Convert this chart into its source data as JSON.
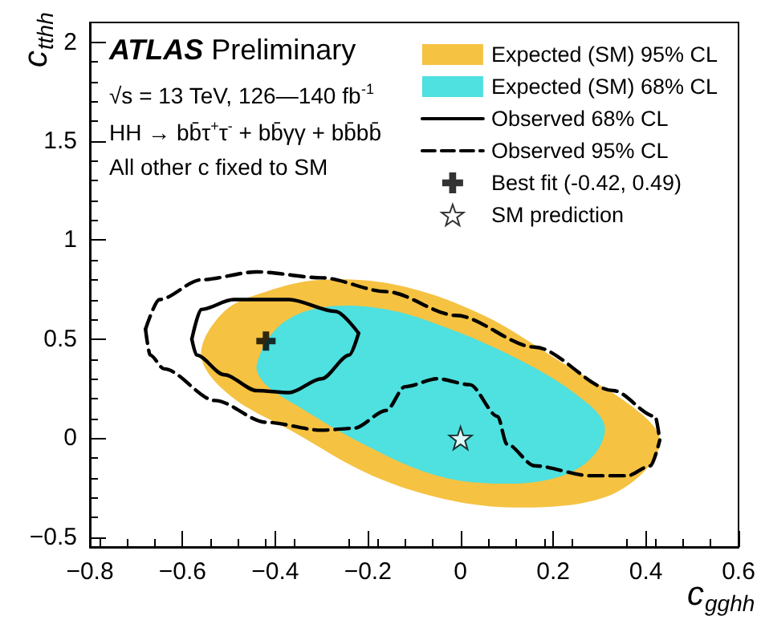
{
  "chart_data": {
    "type": "line",
    "xlabel": "c$_{gghh}$",
    "ylabel": "c$_{tthh}$",
    "xlim": [
      -0.8,
      0.6
    ],
    "xticks": [
      -0.8,
      -0.6,
      -0.4,
      -0.2,
      0,
      0.2,
      0.4,
      0.6
    ],
    "ylim": [
      -0.55,
      2.1
    ],
    "yticks": [
      -0.5,
      0,
      0.5,
      1,
      1.5,
      2
    ],
    "grid": false,
    "legend": "top right",
    "annotations": [
      "ATLAS Preliminary",
      "√s = 13 TeV, 126—140 fb$^{-1}$",
      "HH → bb̄τ$^{+}$τ$^{-}$ + bb̄γγ + bb̄bb̄",
      "All other c fixed to SM"
    ],
    "series": [
      {
        "name": "Expected (SM) 95% CL",
        "type": "area",
        "color": "#f5c242",
        "x": [
          -0.56,
          -0.51,
          -0.42,
          -0.3,
          -0.13,
          0.05,
          0.22,
          0.37,
          0.43,
          0.4,
          0.31,
          0.16,
          -0.01,
          -0.19,
          -0.36,
          -0.5
        ],
        "values": [
          0.42,
          0.64,
          0.74,
          0.8,
          0.77,
          0.62,
          0.38,
          0.16,
          0,
          -0.16,
          -0.3,
          -0.35,
          -0.32,
          -0.19,
          0.03,
          0.22
        ]
      },
      {
        "name": "Expected (SM) 68% CL",
        "type": "area",
        "color": "#4fe0e0",
        "x": [
          -0.44,
          -0.39,
          -0.3,
          -0.16,
          -0.01,
          0.14,
          0.25,
          0.31,
          0.29,
          0.22,
          0.1,
          -0.05,
          -0.21,
          -0.35,
          -0.42
        ],
        "values": [
          0.37,
          0.57,
          0.66,
          0.65,
          0.54,
          0.38,
          0.22,
          0.07,
          -0.08,
          -0.19,
          -0.23,
          -0.19,
          -0.03,
          0.16,
          0.27
        ]
      },
      {
        "name": "Observed 68% CL",
        "line_style": "solid",
        "color": "#000000",
        "x": [
          -0.58,
          -0.56,
          -0.49,
          -0.37,
          -0.27,
          -0.22
        ],
        "values": [
          0.5,
          0.65,
          0.7,
          0.7,
          0.64,
          0.53
        ]
      },
      {
        "line_style": "solid",
        "color": "#000000",
        "x": [
          -0.58,
          -0.57,
          -0.51,
          -0.44,
          -0.37,
          -0.3,
          -0.24,
          -0.22
        ],
        "values": [
          0.5,
          0.42,
          0.32,
          0.24,
          0.23,
          0.3,
          0.42,
          0.53
        ]
      },
      {
        "name": "Observed 95% CL",
        "line_style": "dashed",
        "color": "#000000",
        "x": [
          -0.68,
          -0.65,
          -0.56,
          -0.44,
          -0.3,
          -0.16,
          -0.01,
          0.16,
          0.33,
          0.42,
          0.43
        ],
        "values": [
          0.55,
          0.7,
          0.8,
          0.84,
          0.81,
          0.74,
          0.62,
          0.46,
          0.24,
          0.11,
          -0.01
        ]
      },
      {
        "line_style": "dashed",
        "color": "#000000",
        "x": [
          -0.68,
          -0.67,
          -0.64,
          -0.53,
          -0.42,
          -0.3,
          -0.23,
          -0.16,
          -0.12,
          -0.05,
          0.02,
          0.08,
          0.1,
          0.16,
          0.28,
          0.36,
          0.41,
          0.43
        ],
        "values": [
          0.55,
          0.42,
          0.35,
          0.19,
          0.08,
          0.04,
          0.05,
          0.14,
          0.26,
          0.3,
          0.27,
          0.11,
          -0.03,
          -0.14,
          -0.19,
          -0.19,
          -0.14,
          -0.01
        ]
      },
      {
        "name": "Best fit (-0.42, 0.49)",
        "type": "scatter",
        "marker": "cross",
        "color": "#000000",
        "x": [
          -0.42
        ],
        "values": [
          0.49
        ]
      },
      {
        "name": "SM prediction",
        "type": "scatter",
        "marker": "star",
        "color": "#ffffff",
        "x": [
          0
        ],
        "values": [
          0
        ]
      }
    ]
  }
}
